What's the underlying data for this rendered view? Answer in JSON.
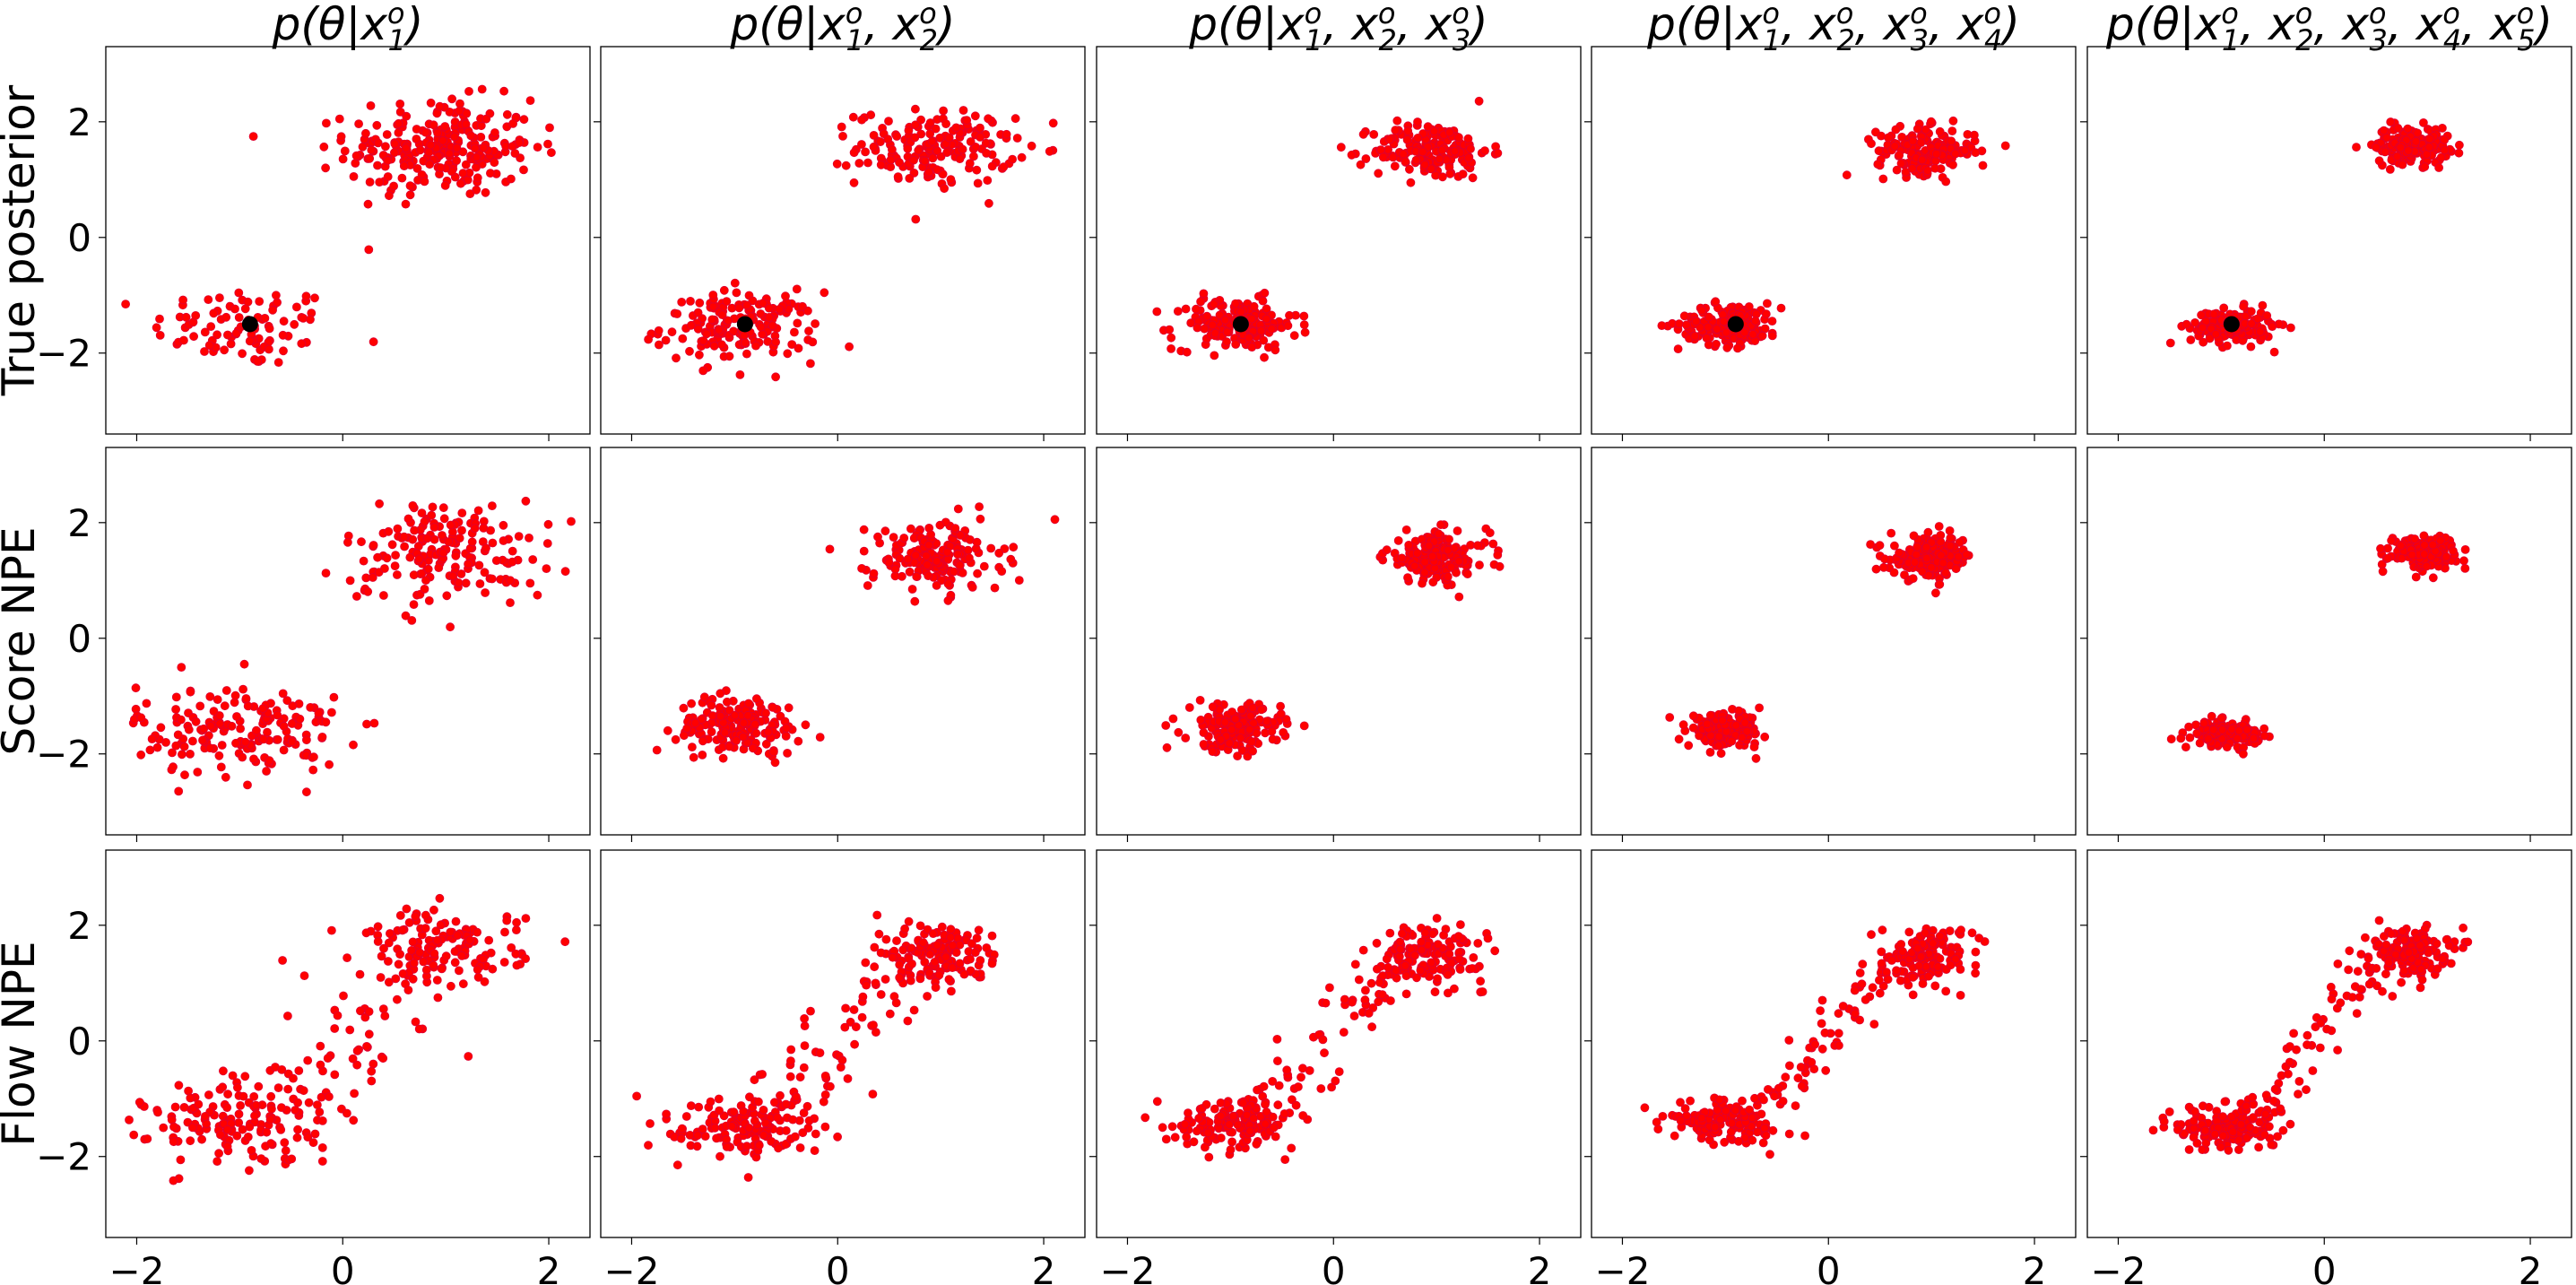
{
  "chart_data": {
    "type": "scatter",
    "layout": {
      "rows": 3,
      "cols": 5,
      "sharex": true,
      "sharey": true
    },
    "xlim": [
      -2.3,
      2.4
    ],
    "ylim": [
      -3.4,
      3.3
    ],
    "xticks": [
      -2,
      0,
      2
    ],
    "yticks": [
      -2,
      0,
      2
    ],
    "xtick_labels": [
      "−2",
      "0",
      "2"
    ],
    "ytick_labels": [
      "−2",
      "0",
      "2"
    ],
    "point_color": "#ff0000",
    "point_edge_color": "#dd0033",
    "marker_color": "#000000",
    "true_parameter": {
      "x": -0.9,
      "y": -1.5
    },
    "column_titles": [
      {
        "base": "p(θ|",
        "count": 1
      },
      {
        "base": "p(θ|",
        "count": 2
      },
      {
        "base": "p(θ|",
        "count": 3
      },
      {
        "base": "p(θ|",
        "count": 4
      },
      {
        "base": "p(θ|",
        "count": 5
      }
    ],
    "row_labels": [
      "True posterior",
      "Score NPE",
      "Flow NPE"
    ],
    "panels": [
      {
        "row": 0,
        "col": 0,
        "mode": "true",
        "marker": true,
        "modes": [
          {
            "cx": -0.95,
            "cy": -1.55,
            "sx": 0.45,
            "sy": 0.35,
            "n": 90
          },
          {
            "cx": 0.95,
            "cy": 1.55,
            "sx": 0.45,
            "sy": 0.42,
            "n": 260
          }
        ]
      },
      {
        "row": 0,
        "col": 1,
        "mode": "true",
        "marker": true,
        "modes": [
          {
            "cx": -0.95,
            "cy": -1.55,
            "sx": 0.38,
            "sy": 0.3,
            "n": 170
          },
          {
            "cx": 0.95,
            "cy": 1.55,
            "sx": 0.38,
            "sy": 0.32,
            "n": 180
          }
        ]
      },
      {
        "row": 0,
        "col": 2,
        "mode": "true",
        "marker": true,
        "modes": [
          {
            "cx": -0.95,
            "cy": -1.5,
            "sx": 0.3,
            "sy": 0.22,
            "n": 175
          },
          {
            "cx": 0.95,
            "cy": 1.5,
            "sx": 0.28,
            "sy": 0.25,
            "n": 175
          }
        ]
      },
      {
        "row": 0,
        "col": 3,
        "mode": "true",
        "marker": true,
        "modes": [
          {
            "cx": -0.95,
            "cy": -1.5,
            "sx": 0.25,
            "sy": 0.18,
            "n": 175
          },
          {
            "cx": 0.95,
            "cy": 1.5,
            "sx": 0.24,
            "sy": 0.2,
            "n": 175
          }
        ]
      },
      {
        "row": 0,
        "col": 4,
        "mode": "true",
        "marker": true,
        "modes": [
          {
            "cx": -0.9,
            "cy": -1.55,
            "sx": 0.2,
            "sy": 0.15,
            "n": 175
          },
          {
            "cx": 0.85,
            "cy": 1.6,
            "sx": 0.18,
            "sy": 0.16,
            "n": 175
          }
        ]
      },
      {
        "row": 1,
        "col": 0,
        "mode": "score",
        "marker": false,
        "modes": [
          {
            "cx": -1.0,
            "cy": -1.6,
            "sx": 0.5,
            "sy": 0.4,
            "n": 180
          },
          {
            "cx": 1.0,
            "cy": 1.5,
            "sx": 0.5,
            "sy": 0.45,
            "n": 180
          }
        ]
      },
      {
        "row": 1,
        "col": 1,
        "mode": "score",
        "marker": false,
        "modes": [
          {
            "cx": -0.95,
            "cy": -1.5,
            "sx": 0.3,
            "sy": 0.25,
            "n": 175
          },
          {
            "cx": 0.95,
            "cy": 1.4,
            "sx": 0.32,
            "sy": 0.3,
            "n": 175
          }
        ]
      },
      {
        "row": 1,
        "col": 2,
        "mode": "score",
        "marker": false,
        "modes": [
          {
            "cx": -0.95,
            "cy": -1.55,
            "sx": 0.22,
            "sy": 0.2,
            "n": 175
          },
          {
            "cx": 1.0,
            "cy": 1.4,
            "sx": 0.25,
            "sy": 0.22,
            "n": 175
          }
        ]
      },
      {
        "row": 1,
        "col": 3,
        "mode": "score",
        "marker": false,
        "modes": [
          {
            "cx": -1.0,
            "cy": -1.6,
            "sx": 0.18,
            "sy": 0.14,
            "n": 175
          },
          {
            "cx": 1.0,
            "cy": 1.4,
            "sx": 0.2,
            "sy": 0.18,
            "n": 175
          }
        ]
      },
      {
        "row": 1,
        "col": 4,
        "mode": "score",
        "marker": false,
        "modes": [
          {
            "cx": -0.95,
            "cy": -1.65,
            "sx": 0.16,
            "sy": 0.1,
            "n": 175
          },
          {
            "cx": 0.95,
            "cy": 1.5,
            "sx": 0.16,
            "sy": 0.14,
            "n": 175
          }
        ]
      },
      {
        "row": 2,
        "col": 0,
        "mode": "flow",
        "marker": false,
        "modes": [
          {
            "cx": -1.05,
            "cy": -1.45,
            "sx": 0.42,
            "sy": 0.35,
            "n": 130
          },
          {
            "cx": 1.0,
            "cy": 1.6,
            "sx": 0.38,
            "sy": 0.32,
            "n": 130
          }
        ],
        "bridge": {
          "n": 90,
          "spread": 0.38
        }
      },
      {
        "row": 2,
        "col": 1,
        "mode": "flow",
        "marker": false,
        "modes": [
          {
            "cx": -0.95,
            "cy": -1.5,
            "sx": 0.35,
            "sy": 0.28,
            "n": 140
          },
          {
            "cx": 0.95,
            "cy": 1.5,
            "sx": 0.3,
            "sy": 0.28,
            "n": 140
          }
        ],
        "bridge": {
          "n": 70,
          "spread": 0.2
        }
      },
      {
        "row": 2,
        "col": 2,
        "mode": "flow",
        "marker": false,
        "modes": [
          {
            "cx": -0.95,
            "cy": -1.4,
            "sx": 0.3,
            "sy": 0.22,
            "n": 140
          },
          {
            "cx": 0.95,
            "cy": 1.5,
            "sx": 0.25,
            "sy": 0.24,
            "n": 140
          }
        ],
        "bridge": {
          "n": 70,
          "spread": 0.14
        }
      },
      {
        "row": 2,
        "col": 3,
        "mode": "flow",
        "marker": false,
        "modes": [
          {
            "cx": -1.0,
            "cy": -1.4,
            "sx": 0.28,
            "sy": 0.18,
            "n": 140
          },
          {
            "cx": 0.95,
            "cy": 1.5,
            "sx": 0.22,
            "sy": 0.22,
            "n": 140
          }
        ],
        "bridge": {
          "n": 70,
          "spread": 0.12
        }
      },
      {
        "row": 2,
        "col": 4,
        "mode": "flow",
        "marker": false,
        "modes": [
          {
            "cx": -0.95,
            "cy": -1.5,
            "sx": 0.25,
            "sy": 0.2,
            "n": 140
          },
          {
            "cx": 0.8,
            "cy": 1.55,
            "sx": 0.2,
            "sy": 0.22,
            "n": 140
          }
        ],
        "bridge": {
          "n": 70,
          "spread": 0.12
        }
      }
    ]
  }
}
